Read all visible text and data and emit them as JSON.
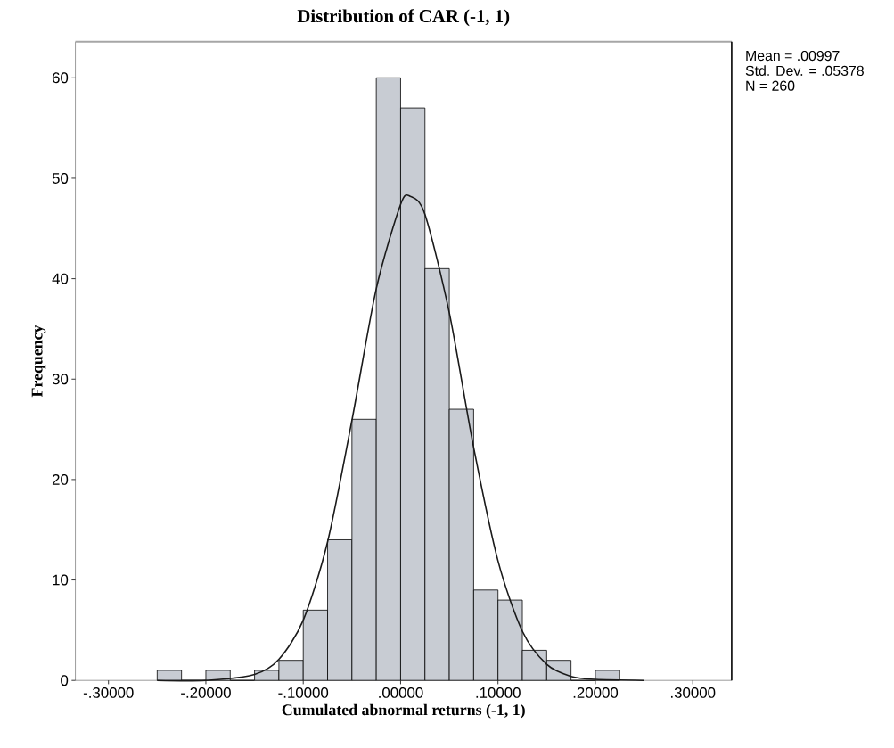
{
  "chart_data": {
    "type": "histogram",
    "title": "Distribution of CAR (-1, 1)",
    "xlabel": "Cumulated abnormal returns (-1, 1)",
    "ylabel": "Frequency",
    "bins": [
      -0.25,
      -0.225,
      -0.2,
      -0.175,
      -0.15,
      -0.125,
      -0.1,
      -0.075,
      -0.05,
      -0.025,
      0,
      0.025,
      0.05,
      0.075,
      0.1,
      0.125,
      0.15,
      0.175,
      0.2,
      0.225
    ],
    "values": [
      1,
      0,
      1,
      0,
      1,
      2,
      7,
      14,
      26,
      60,
      57,
      41,
      27,
      9,
      8,
      3,
      2,
      0,
      1
    ],
    "color": "#c8ccd3",
    "series": [
      {
        "type": "line",
        "color": "#1a1a1a",
        "x": [
          -0.25,
          -0.2,
          -0.15,
          -0.125,
          -0.1,
          -0.075,
          -0.05,
          -0.025,
          0,
          0.00997,
          0.025,
          0.05,
          0.075,
          0.1,
          0.125,
          0.15,
          0.175,
          0.2,
          0.25
        ],
        "values": [
          0,
          0,
          0.6,
          2.1,
          6,
          13.8,
          25.9,
          39,
          47.4,
          48.2,
          46.4,
          36.6,
          23.2,
          11.9,
          4.9,
          1.6,
          0.4,
          0.1,
          0
        ]
      }
    ],
    "xlim": [
      -0.334,
      0.34
    ],
    "ylim": [
      0,
      63.6
    ],
    "xticks": [
      {
        "value": -0.3,
        "label": "-.30000"
      },
      {
        "value": -0.2,
        "label": "-.20000"
      },
      {
        "value": -0.1,
        "label": "-.10000"
      },
      {
        "value": 0,
        "label": ".00000"
      },
      {
        "value": 0.1,
        "label": ".10000"
      },
      {
        "value": 0.2,
        "label": ".20000"
      },
      {
        "value": 0.3,
        "label": ".30000"
      }
    ],
    "yticks": [
      0,
      10,
      20,
      30,
      40,
      50,
      60
    ],
    "annotations": [
      "Mean = .00997",
      "Std. Dev. = .05378",
      "N = 260"
    ]
  }
}
